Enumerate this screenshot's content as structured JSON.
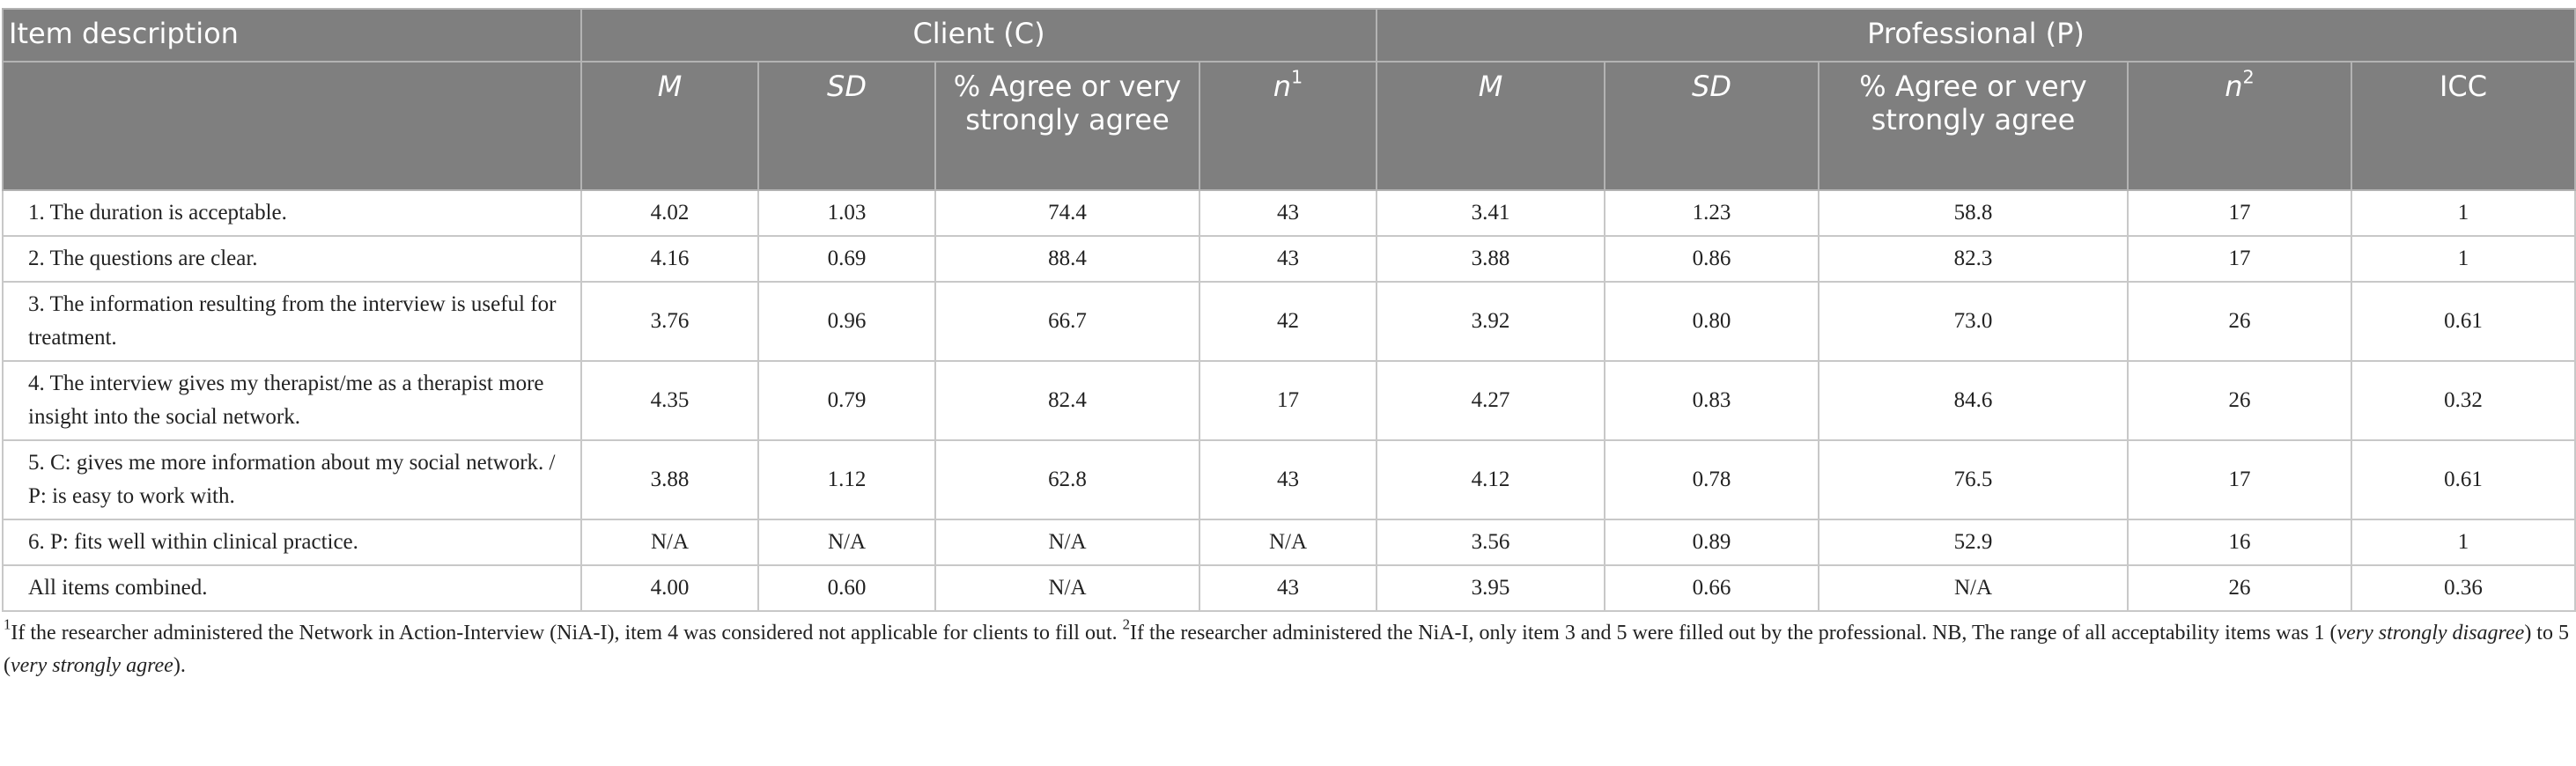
{
  "table": {
    "group_header": [
      "Item description",
      "Client (C)",
      "Professional (P)"
    ],
    "columns": [
      {
        "label": "M",
        "italic": true
      },
      {
        "label": "SD",
        "italic": true
      },
      {
        "label": "% Agree or very strongly agree"
      },
      {
        "label": "n",
        "italic": true,
        "sup": "1"
      },
      {
        "label": "M",
        "italic": true
      },
      {
        "label": "SD",
        "italic": true
      },
      {
        "label": "% Agree or very strongly agree"
      },
      {
        "label": "n",
        "italic": true,
        "sup": "2"
      },
      {
        "label": "ICC"
      }
    ],
    "rows": [
      [
        "1. The duration is acceptable.",
        "4.02",
        "1.03",
        "74.4",
        "43",
        "3.41",
        "1.23",
        "58.8",
        "17",
        "1"
      ],
      [
        "2. The questions are clear.",
        "4.16",
        "0.69",
        "88.4",
        "43",
        "3.88",
        "0.86",
        "82.3",
        "17",
        "1"
      ],
      [
        "3. The information resulting from the interview is useful for treatment.",
        "3.76",
        "0.96",
        "66.7",
        "42",
        "3.92",
        "0.80",
        "73.0",
        "26",
        "0.61"
      ],
      [
        "4. The interview gives my therapist/me as a therapist more insight into the social network.",
        "4.35",
        "0.79",
        "82.4",
        "17",
        "4.27",
        "0.83",
        "84.6",
        "26",
        "0.32"
      ],
      [
        "5. C: gives me more information about my social network. / P: is easy to work with.",
        "3.88",
        "1.12",
        "62.8",
        "43",
        "4.12",
        "0.78",
        "76.5",
        "17",
        "0.61"
      ],
      [
        "6. P: fits well within clinical practice.",
        "N/A",
        "N/A",
        "N/A",
        "N/A",
        "3.56",
        "0.89",
        "52.9",
        "16",
        "1"
      ],
      [
        "All items combined.",
        "4.00",
        "0.60",
        "N/A",
        "43",
        "3.95",
        "0.66",
        "N/A",
        "26",
        "0.36"
      ]
    ]
  },
  "footnote": [
    {
      "text": "1",
      "style": "sup"
    },
    {
      "text": "If the researcher administered the Network in Action-Interview (NiA-I), item 4 was considered not applicable for clients to fill out. ",
      "style": "normal"
    },
    {
      "text": "2",
      "style": "sup"
    },
    {
      "text": "If the researcher administered the NiA-I, only item 3 and 5 were filled out by the professional. NB, The range of all acceptability items was 1 (",
      "style": "normal"
    },
    {
      "text": "very strongly disagree",
      "style": "italic"
    },
    {
      "text": ") to 5 (",
      "style": "normal"
    },
    {
      "text": "very strongly agree",
      "style": "italic"
    },
    {
      "text": ").",
      "style": "normal"
    }
  ]
}
